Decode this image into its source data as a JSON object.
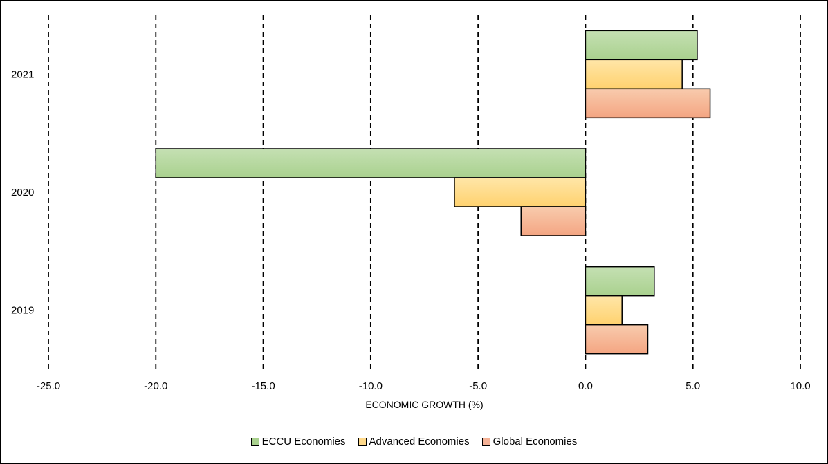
{
  "chart_data": {
    "type": "bar",
    "orientation": "horizontal",
    "title": "",
    "xlabel": "ECONOMIC GROWTH (%)",
    "ylabel": "",
    "xlim": [
      -25,
      10
    ],
    "x_ticks": [
      -25,
      -20,
      -15,
      -10,
      -5,
      0,
      5,
      10
    ],
    "x_tick_labels": [
      "-25.0",
      "-20.0",
      "-15.0",
      "-10.0",
      "-5.0",
      "0.0",
      "5.0",
      "10.0"
    ],
    "categories": [
      "2021",
      "2020",
      "2019"
    ],
    "grid": "vertical dashed",
    "legend_position": "bottom",
    "series": [
      {
        "name": "ECCU Economies",
        "values": [
          5.2,
          -20.0,
          3.2
        ],
        "color": "#a9d18e"
      },
      {
        "name": "Advanced Economies",
        "values": [
          4.5,
          -6.1,
          1.7
        ],
        "color": "#ffd98a"
      },
      {
        "name": "Global Economies",
        "values": [
          5.8,
          -3.0,
          2.9
        ],
        "color": "#f4b196"
      }
    ]
  }
}
